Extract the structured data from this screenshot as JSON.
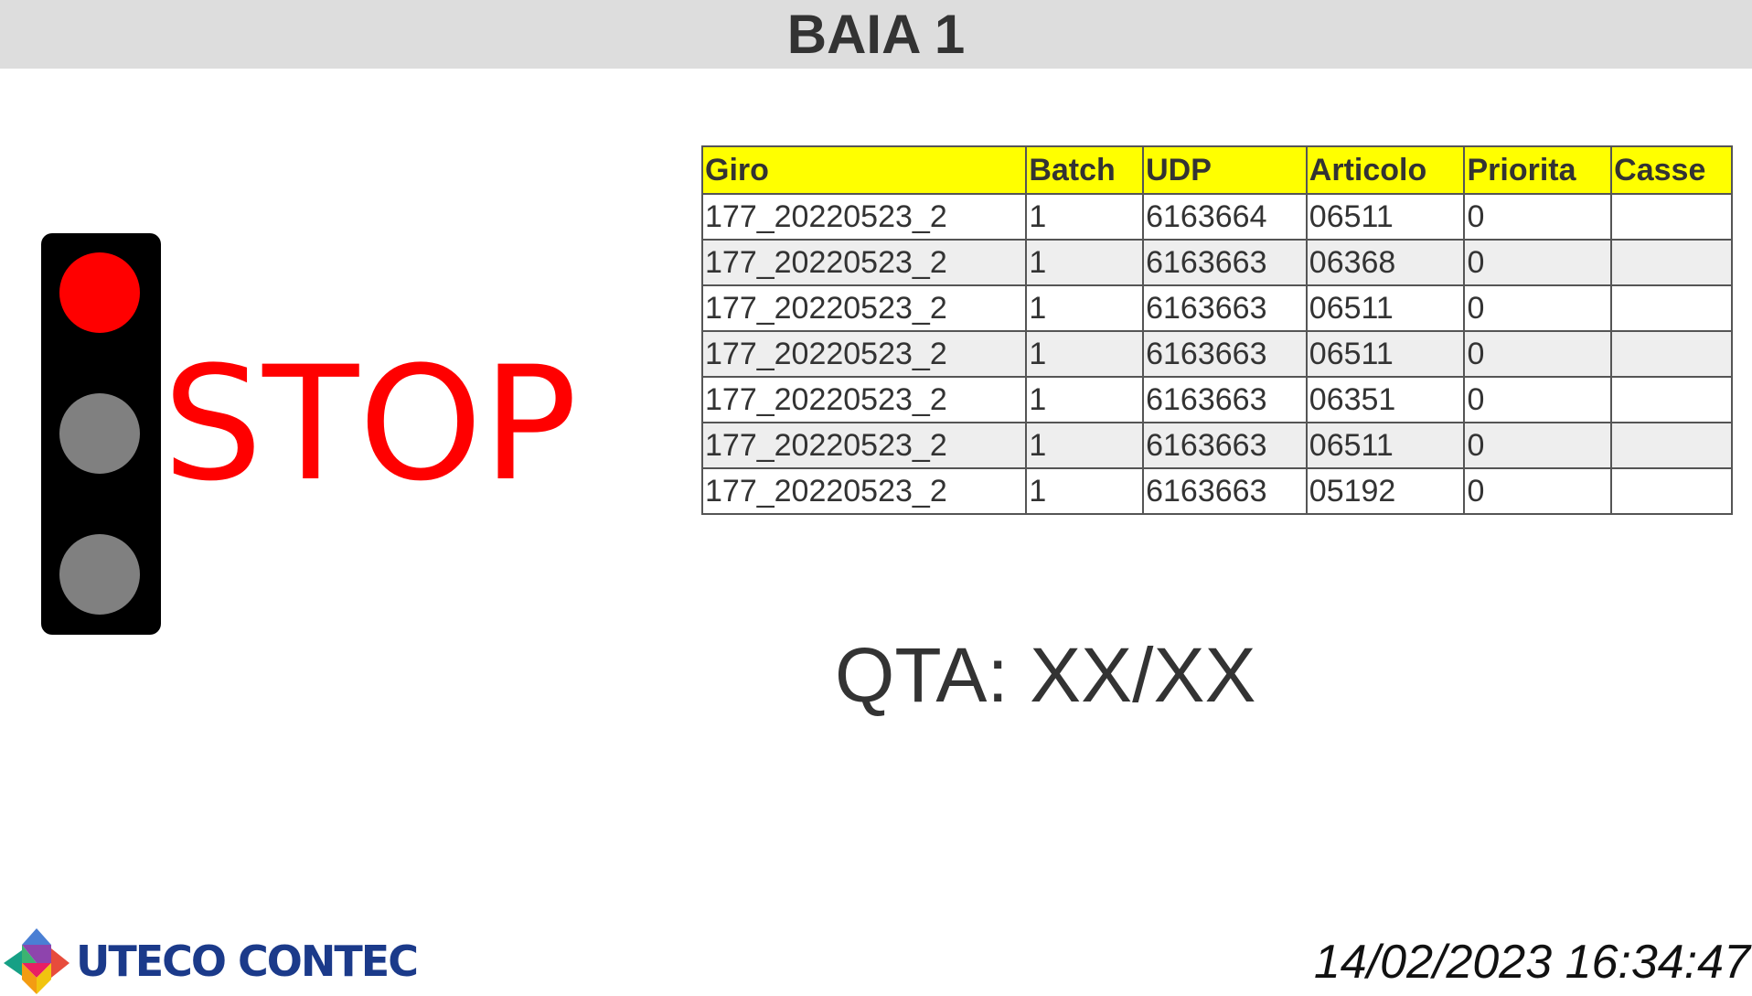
{
  "header": {
    "title": "BAIA 1"
  },
  "traffic_light": {
    "state": "red",
    "lamps": [
      {
        "name": "red",
        "color": "#ff0000",
        "lit": true
      },
      {
        "name": "yellow",
        "color": "#808080",
        "lit": false
      },
      {
        "name": "green",
        "color": "#808080",
        "lit": false
      }
    ]
  },
  "status": {
    "label": "STOP",
    "color": "#ff0000"
  },
  "table": {
    "header_color": "#ffff00",
    "columns": [
      "Giro",
      "Batch",
      "UDP",
      "Articolo",
      "Priorita",
      "Casse"
    ],
    "rows": [
      [
        "177_20220523_2",
        "1",
        "6163664",
        "06511",
        "0",
        ""
      ],
      [
        "177_20220523_2",
        "1",
        "6163663",
        "06368",
        "0",
        ""
      ],
      [
        "177_20220523_2",
        "1",
        "6163663",
        "06511",
        "0",
        ""
      ],
      [
        "177_20220523_2",
        "1",
        "6163663",
        "06511",
        "0",
        ""
      ],
      [
        "177_20220523_2",
        "1",
        "6163663",
        "06351",
        "0",
        ""
      ],
      [
        "177_20220523_2",
        "1",
        "6163663",
        "06511",
        "0",
        ""
      ],
      [
        "177_20220523_2",
        "1",
        "6163663",
        "05192",
        "0",
        ""
      ]
    ]
  },
  "quantity": {
    "text": "QTA: XX/XX"
  },
  "footer": {
    "logo_text": "UTECO CONTEC",
    "datetime": "14/02/2023 16:34:47"
  }
}
